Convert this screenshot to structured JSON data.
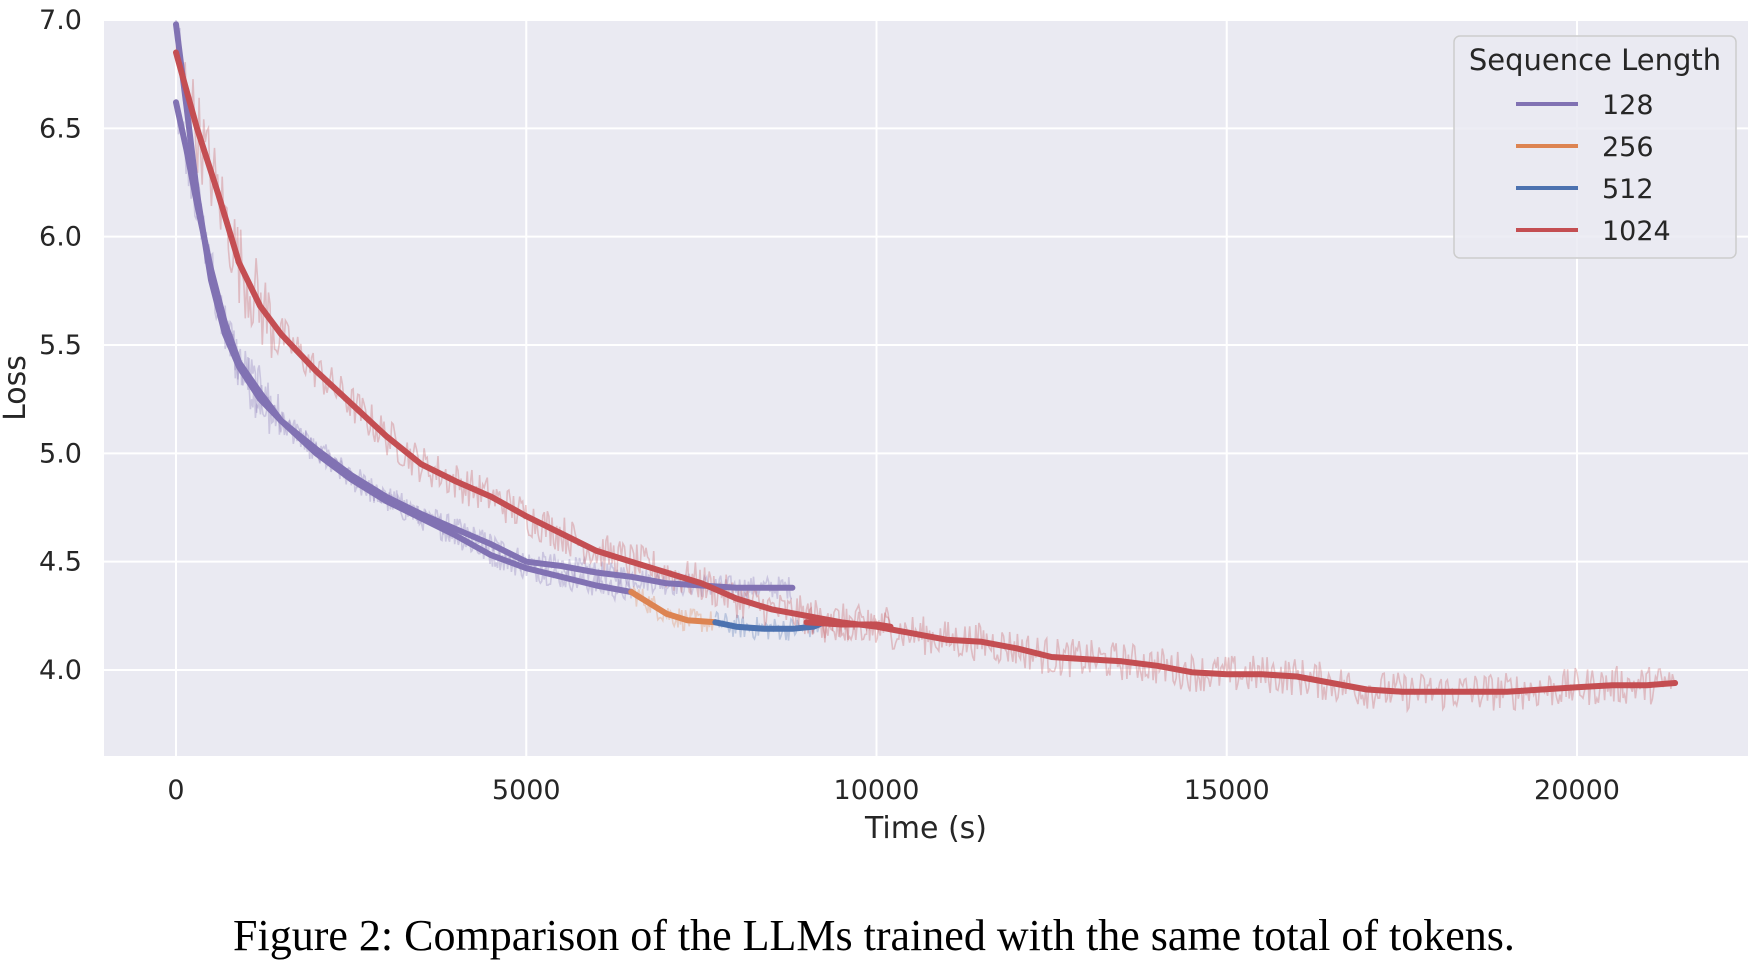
{
  "caption": "Figure 2: Comparison of the LLMs trained with the same total of tokens.",
  "chart_data": {
    "type": "line",
    "title": "",
    "xlabel": "Time (s)",
    "ylabel": "Loss",
    "xlim": [
      -1000,
      22500
    ],
    "ylim": [
      3.62,
      7.0
    ],
    "xticks": [
      0,
      5000,
      10000,
      15000,
      20000
    ],
    "xtick_labels": [
      "0",
      "5000",
      "10000",
      "15000",
      "20000"
    ],
    "yticks": [
      4.0,
      4.5,
      5.0,
      5.5,
      6.0,
      6.5,
      7.0
    ],
    "ytick_labels": [
      "4.0",
      "4.5",
      "5.0",
      "5.5",
      "6.0",
      "6.5",
      "7.0"
    ],
    "grid": true,
    "legend": {
      "title": "Sequence Length",
      "placement": "top-right"
    },
    "series": [
      {
        "name": "128",
        "color": "#8172b3",
        "smoothed": [
          [
            0,
            6.98
          ],
          [
            150,
            6.6
          ],
          [
            300,
            6.2
          ],
          [
            500,
            5.8
          ],
          [
            700,
            5.55
          ],
          [
            900,
            5.4
          ],
          [
            1200,
            5.25
          ],
          [
            1500,
            5.15
          ],
          [
            2000,
            5.02
          ],
          [
            2500,
            4.9
          ],
          [
            3000,
            4.8
          ],
          [
            3500,
            4.72
          ],
          [
            4000,
            4.65
          ],
          [
            4500,
            4.58
          ],
          [
            5000,
            4.5
          ],
          [
            5500,
            4.48
          ],
          [
            6000,
            4.45
          ],
          [
            6500,
            4.43
          ],
          [
            7000,
            4.4
          ],
          [
            7500,
            4.39
          ],
          [
            8000,
            4.38
          ],
          [
            8800,
            4.38
          ]
        ]
      },
      {
        "name": "128",
        "color": "#8172b3",
        "smoothed": [
          [
            0,
            6.62
          ],
          [
            150,
            6.4
          ],
          [
            300,
            6.15
          ],
          [
            500,
            5.85
          ],
          [
            700,
            5.6
          ],
          [
            900,
            5.42
          ],
          [
            1200,
            5.28
          ],
          [
            1500,
            5.15
          ],
          [
            2000,
            5.0
          ],
          [
            2500,
            4.88
          ],
          [
            3000,
            4.78
          ],
          [
            3500,
            4.7
          ],
          [
            4000,
            4.62
          ],
          [
            4500,
            4.53
          ],
          [
            5000,
            4.47
          ],
          [
            5500,
            4.43
          ],
          [
            6000,
            4.39
          ],
          [
            6500,
            4.36
          ]
        ]
      },
      {
        "name": "256",
        "color": "#dd8452",
        "smoothed": [
          [
            6500,
            4.36
          ],
          [
            6800,
            4.3
          ],
          [
            7000,
            4.26
          ],
          [
            7300,
            4.23
          ],
          [
            7700,
            4.22
          ]
        ]
      },
      {
        "name": "512",
        "color": "#4c72b0",
        "smoothed": [
          [
            7700,
            4.22
          ],
          [
            8000,
            4.2
          ],
          [
            8400,
            4.19
          ],
          [
            8800,
            4.19
          ],
          [
            9100,
            4.2
          ],
          [
            9250,
            4.22
          ]
        ]
      },
      {
        "name": "1024",
        "color": "#c44e52",
        "smoothed": [
          [
            0,
            6.85
          ],
          [
            300,
            6.5
          ],
          [
            600,
            6.2
          ],
          [
            900,
            5.88
          ],
          [
            1200,
            5.68
          ],
          [
            1500,
            5.55
          ],
          [
            2000,
            5.38
          ],
          [
            2500,
            5.23
          ],
          [
            3000,
            5.08
          ],
          [
            3500,
            4.95
          ],
          [
            4000,
            4.87
          ],
          [
            4500,
            4.8
          ],
          [
            5000,
            4.71
          ],
          [
            5500,
            4.63
          ],
          [
            6000,
            4.55
          ],
          [
            6500,
            4.5
          ],
          [
            7000,
            4.45
          ],
          [
            7500,
            4.4
          ],
          [
            8000,
            4.33
          ],
          [
            8500,
            4.28
          ],
          [
            9000,
            4.25
          ],
          [
            9500,
            4.22
          ],
          [
            10000,
            4.2
          ],
          [
            10500,
            4.17
          ],
          [
            11000,
            4.14
          ],
          [
            11500,
            4.13
          ],
          [
            12000,
            4.1
          ],
          [
            12500,
            4.06
          ],
          [
            13000,
            4.05
          ],
          [
            13500,
            4.04
          ],
          [
            14000,
            4.02
          ],
          [
            14500,
            3.99
          ],
          [
            15000,
            3.98
          ],
          [
            15500,
            3.98
          ],
          [
            16000,
            3.97
          ],
          [
            16500,
            3.94
          ],
          [
            17000,
            3.91
          ],
          [
            17500,
            3.9
          ],
          [
            18000,
            3.9
          ],
          [
            18500,
            3.9
          ],
          [
            19000,
            3.9
          ],
          [
            19500,
            3.91
          ],
          [
            20000,
            3.92
          ],
          [
            20500,
            3.93
          ],
          [
            21000,
            3.93
          ],
          [
            21400,
            3.94
          ]
        ]
      },
      {
        "name": "1024",
        "color": "#c44e52",
        "smoothed": [
          [
            9000,
            4.22
          ],
          [
            9500,
            4.21
          ],
          [
            10000,
            4.21
          ],
          [
            10200,
            4.2
          ]
        ]
      }
    ]
  }
}
